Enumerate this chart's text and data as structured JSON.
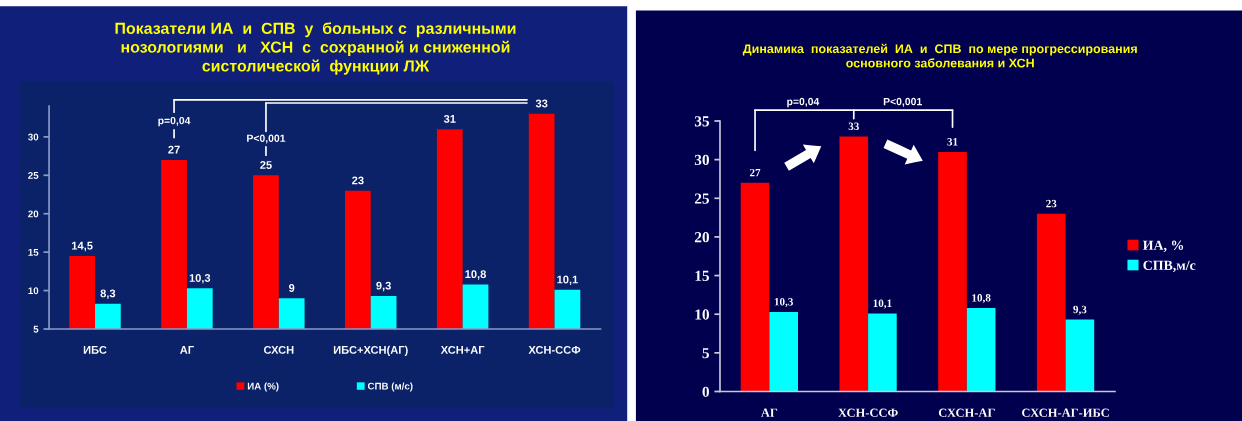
{
  "chart_data": [
    {
      "type": "bar",
      "title": "Показатели ИА  и  СПВ  у  больных с  различными\nнозологиями   и   ХСН  с  сохранной и сниженной\nсистолической  функции ЛЖ",
      "categories": [
        "ИБС",
        "АГ",
        "СХСН",
        "ИБС+ХСН(АГ)",
        "ХСН+АГ",
        "ХСН-ССФ"
      ],
      "series": [
        {
          "name": "ИА (%)",
          "color": "#ff0000",
          "values": [
            14.5,
            27,
            25,
            23,
            31,
            33
          ],
          "value_labels": [
            "14,5",
            "27",
            "25",
            "23",
            "31",
            "33"
          ]
        },
        {
          "name": "СПВ (м/с)",
          "color": "#00ffff",
          "values": [
            8.3,
            10.3,
            9,
            9.3,
            10.8,
            10.1
          ],
          "value_labels": [
            "8,3",
            "10,3",
            "9",
            "9,3",
            "10,8",
            "10,1"
          ]
        }
      ],
      "ylim": [
        5,
        34
      ],
      "yticks": [
        5,
        10,
        15,
        20,
        25,
        30
      ],
      "grid": false,
      "legend": "bottom",
      "annotations": [
        "p=0,04",
        "P<0,001"
      ]
    },
    {
      "type": "bar",
      "title": "Динамика  показателей  ИА  и  СПВ  по мере прогрессирования\nосновного заболевания и ХСН",
      "categories": [
        "АГ",
        "ХСН-ССФ",
        "СХСН-АГ",
        "СХСН-АГ-ИБС"
      ],
      "series": [
        {
          "name": "ИА, %",
          "color": "#ff0000",
          "values": [
            27,
            33,
            31,
            23
          ],
          "value_labels": [
            "27",
            "33",
            "31",
            "23"
          ]
        },
        {
          "name": "СПВ,м/с",
          "color": "#00ffff",
          "values": [
            10.3,
            10.1,
            10.8,
            9.3
          ],
          "value_labels": [
            "10,3",
            "10,1",
            "10,8",
            "9,3"
          ]
        }
      ],
      "ylim": [
        0,
        35
      ],
      "yticks": [
        0,
        5,
        10,
        15,
        20,
        25,
        30,
        35
      ],
      "grid": false,
      "legend": "right",
      "annotations": [
        "p=0,04",
        "P<0,001"
      ]
    }
  ]
}
